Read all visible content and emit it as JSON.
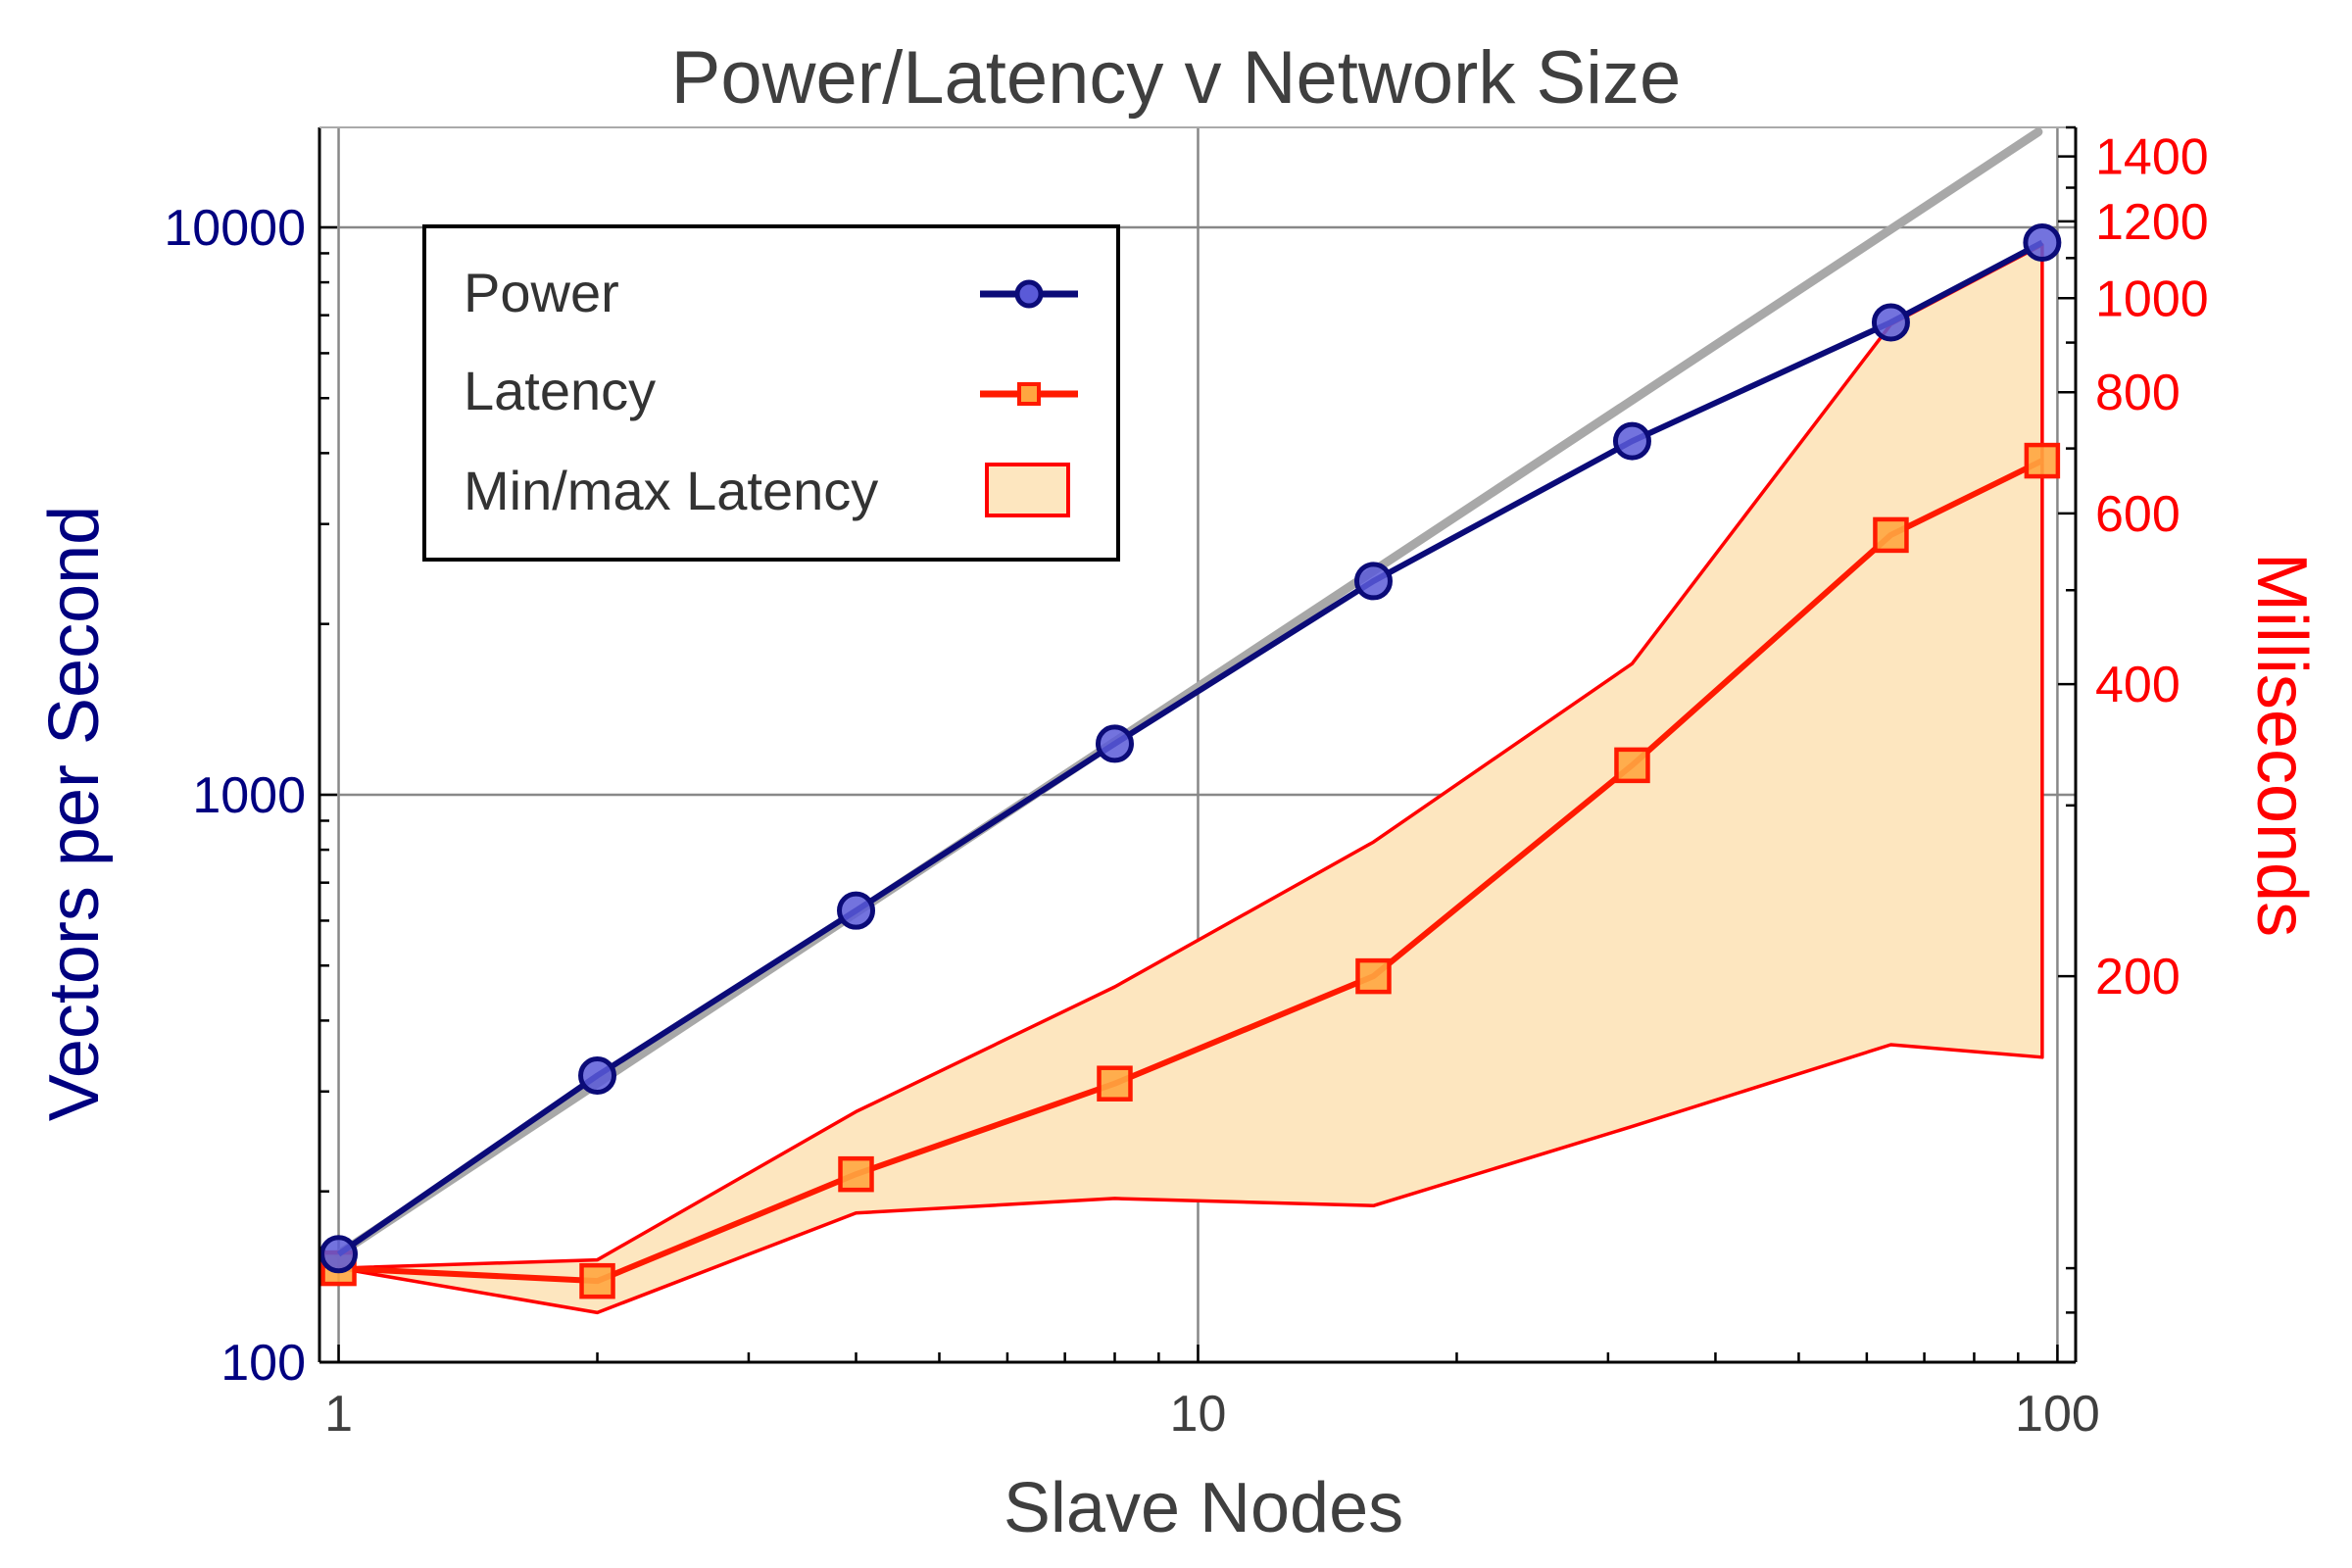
{
  "chart_data": {
    "type": "line",
    "title": "Power/Latency v Network Size",
    "xlabel": "Slave Nodes",
    "ylabel": "Vectors per Second",
    "y2label": "Milliseconds",
    "x_scale": "log",
    "y_scale": "log",
    "y2_scale": "log",
    "xlim": [
      0.95,
      105
    ],
    "ylim": [
      100,
      15000
    ],
    "y2lim": [
      80,
      1500
    ],
    "x_ticks": [
      "1",
      "10",
      "100"
    ],
    "y_ticks": [
      "100",
      "1000",
      "10000"
    ],
    "y2_ticks": [
      "200",
      "400",
      "600",
      "800",
      "1000",
      "1200",
      "1400"
    ],
    "grid": true,
    "legend_position": "top-left",
    "legend": [
      "Power",
      "Latency",
      "Min/max Latency"
    ],
    "colors": {
      "power": "#0b0b78",
      "power_marker_fill": "#5a5ad8",
      "latency": "#ff1a00",
      "latency_marker_fill": "#ffa640",
      "band_fill": "#fde6bf",
      "band_edge": "#ff0000",
      "ideal": "#a8a8a8",
      "axis_left": "#000080",
      "axis_right": "#ff0000",
      "text": "#3f3f3f"
    },
    "x": [
      1,
      2,
      4,
      8,
      16,
      32,
      64,
      96
    ],
    "series": [
      {
        "name": "Power",
        "axis": "left",
        "values": [
          155,
          320,
          625,
          1230,
          2380,
          4200,
          6800,
          9400
        ]
      },
      {
        "name": "Latency",
        "axis": "right",
        "values": [
          100,
          97,
          125,
          155,
          200,
          330,
          570,
          680
        ]
      },
      {
        "name": "Min/max Latency",
        "axis": "right",
        "type": "area",
        "min": [
          100,
          90,
          114,
          118,
          116,
          140,
          170,
          165
        ],
        "max": [
          100,
          102,
          145,
          195,
          275,
          420,
          940,
          1135
        ]
      },
      {
        "axis": "left",
        "type": "reference",
        "x": [
          1,
          95
        ],
        "values": [
          155,
          14725
        ]
      }
    ]
  }
}
